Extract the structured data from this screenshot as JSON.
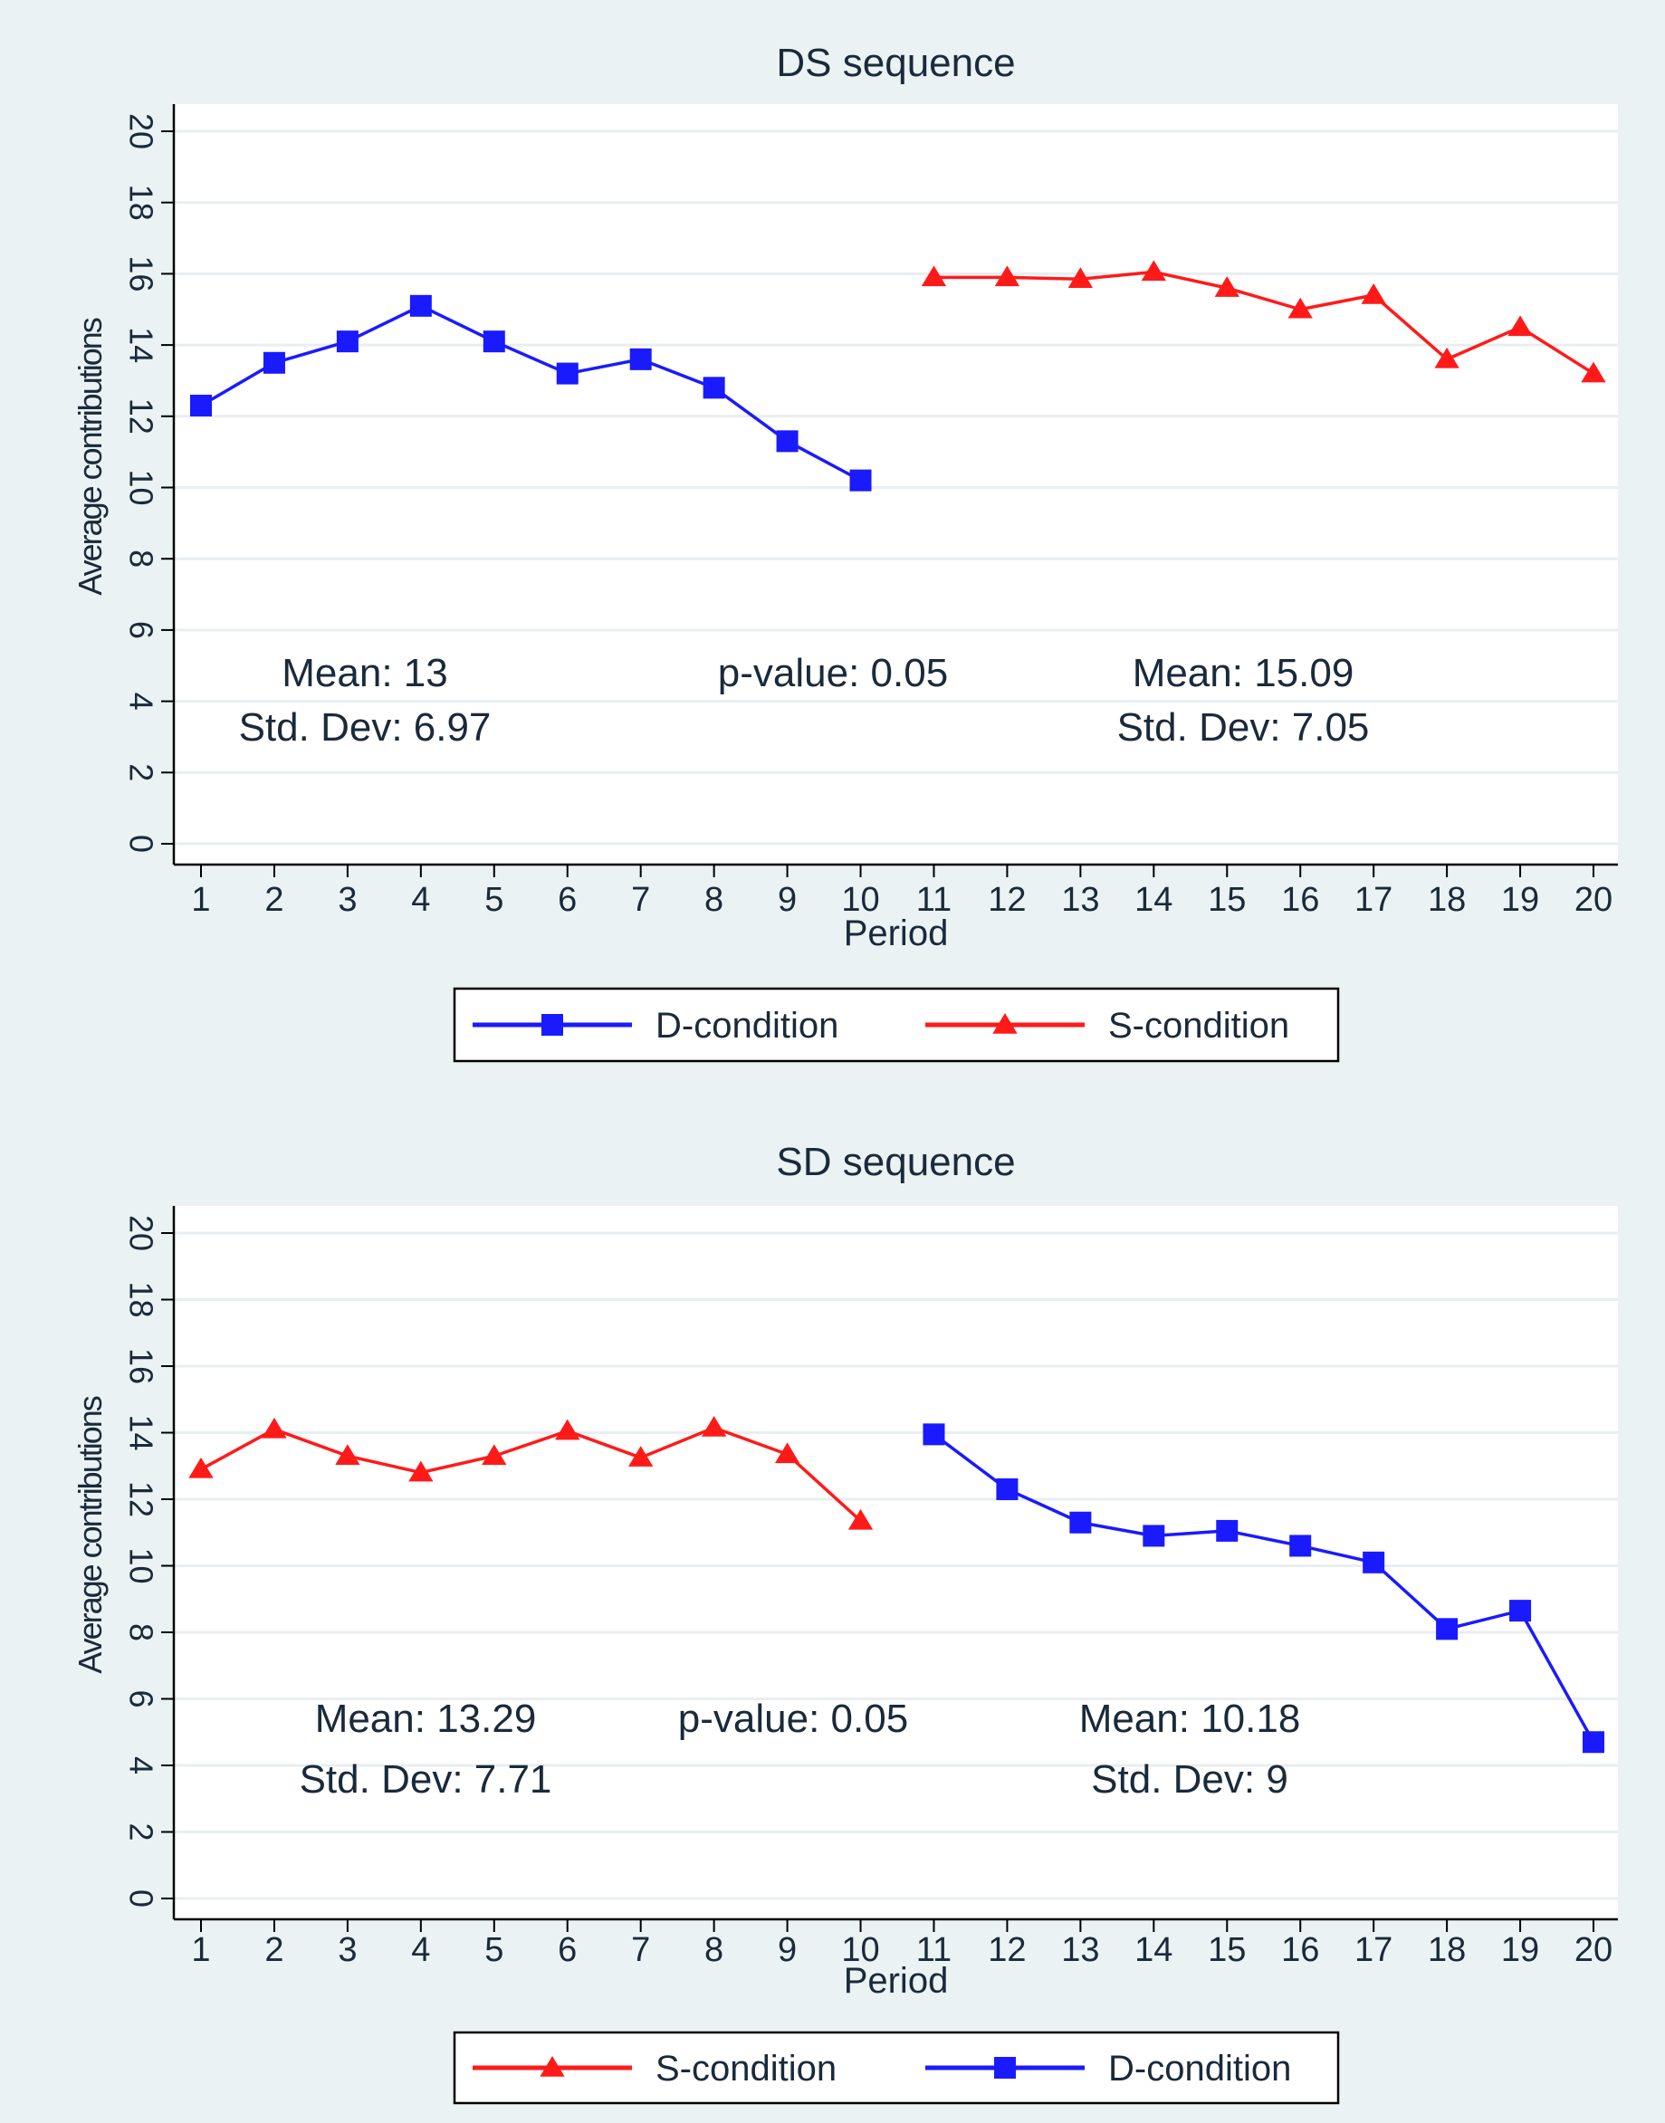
{
  "colors": {
    "background": "#eaf2f3",
    "plot_bg": "#ffffff",
    "grid": "#e9eef1",
    "axis": "#000000",
    "text": "#1a2a3a",
    "d_condition": "#1a1aff",
    "s_condition": "#ff1a1a"
  },
  "chart_data": [
    {
      "type": "line",
      "title": "DS sequence",
      "xlabel": "Period",
      "ylabel": "Average contributions",
      "xlim": [
        1,
        20
      ],
      "ylim": [
        0,
        20
      ],
      "x_ticks": [
        "1",
        "2",
        "3",
        "4",
        "5",
        "6",
        "7",
        "8",
        "9",
        "10",
        "11",
        "12",
        "13",
        "14",
        "15",
        "16",
        "17",
        "18",
        "19",
        "20"
      ],
      "y_ticks": [
        "0",
        "2",
        "4",
        "6",
        "8",
        "10",
        "12",
        "14",
        "16",
        "18",
        "20"
      ],
      "grid": true,
      "series": [
        {
          "name": "D-condition",
          "marker": "square",
          "color_key": "d_condition",
          "x": [
            1,
            2,
            3,
            4,
            5,
            6,
            7,
            8,
            9,
            10
          ],
          "values": [
            12.3,
            13.5,
            14.1,
            15.1,
            14.1,
            13.2,
            13.6,
            12.8,
            11.3,
            10.2
          ]
        },
        {
          "name": "S-condition",
          "marker": "triangle",
          "color_key": "s_condition",
          "x": [
            11,
            12,
            13,
            14,
            15,
            16,
            17,
            18,
            19,
            20
          ],
          "values": [
            15.9,
            15.9,
            15.85,
            16.05,
            15.6,
            15.0,
            15.4,
            13.6,
            14.5,
            13.2
          ]
        }
      ],
      "annotations": {
        "left_mean": "Mean: 13",
        "left_sd": "Std. Dev: 6.97",
        "p_value": "p-value: 0.05",
        "right_mean": "Mean: 15.09",
        "right_sd": "Std. Dev: 7.05"
      },
      "legend": [
        "D-condition",
        "S-condition"
      ],
      "legend_position": "bottom"
    },
    {
      "type": "line",
      "title": "SD sequence",
      "xlabel": "Period",
      "ylabel": "Average contributions",
      "xlim": [
        1,
        20
      ],
      "ylim": [
        0,
        20
      ],
      "x_ticks": [
        "1",
        "2",
        "3",
        "4",
        "5",
        "6",
        "7",
        "8",
        "9",
        "10",
        "11",
        "12",
        "13",
        "14",
        "15",
        "16",
        "17",
        "18",
        "19",
        "20"
      ],
      "y_ticks": [
        "0",
        "2",
        "4",
        "6",
        "8",
        "10",
        "12",
        "14",
        "16",
        "18",
        "20"
      ],
      "grid": true,
      "series": [
        {
          "name": "S-condition",
          "marker": "triangle",
          "color_key": "s_condition",
          "x": [
            1,
            2,
            3,
            4,
            5,
            6,
            7,
            8,
            9,
            10
          ],
          "values": [
            12.9,
            14.1,
            13.3,
            12.8,
            13.3,
            14.05,
            13.25,
            14.15,
            13.35,
            11.35
          ]
        },
        {
          "name": "D-condition",
          "marker": "square",
          "color_key": "d_condition",
          "x": [
            11,
            12,
            13,
            14,
            15,
            16,
            17,
            18,
            19,
            20
          ],
          "values": [
            13.95,
            12.3,
            11.3,
            10.9,
            11.05,
            10.6,
            10.1,
            8.1,
            8.65,
            4.7
          ]
        }
      ],
      "annotations": {
        "left_mean": "Mean: 13.29",
        "left_sd": "Std. Dev: 7.71",
        "p_value": "p-value: 0.05",
        "right_mean": "Mean: 10.18",
        "right_sd": "Std. Dev: 9"
      },
      "legend": [
        "S-condition",
        "D-condition"
      ],
      "legend_position": "bottom"
    }
  ]
}
